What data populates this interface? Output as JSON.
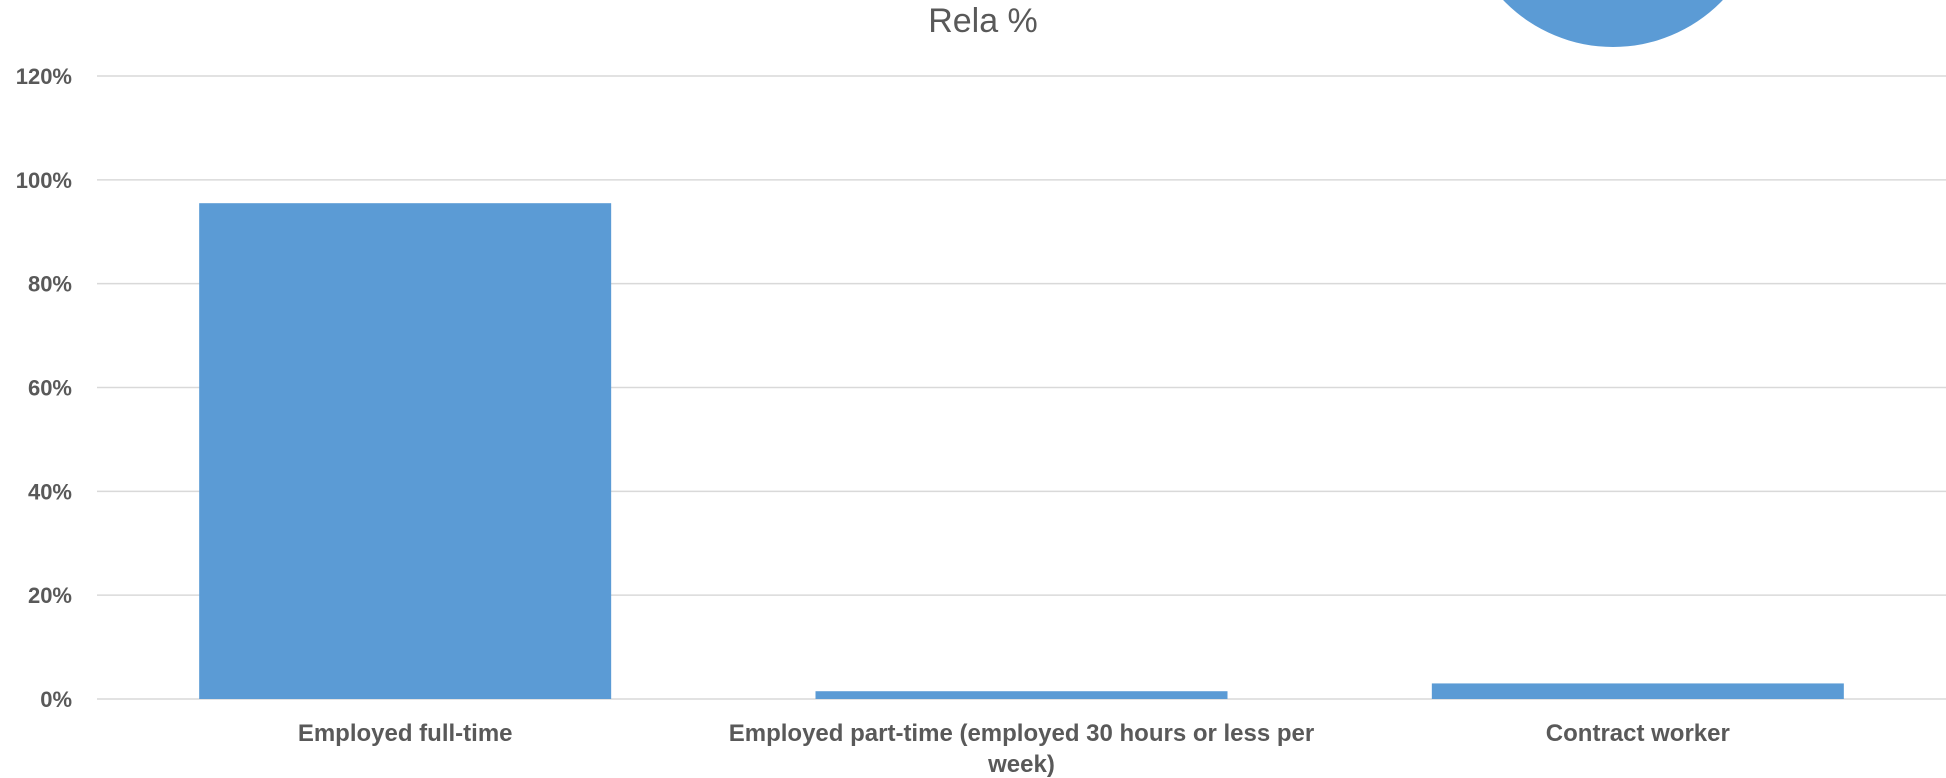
{
  "chart_data": {
    "type": "bar",
    "title": "Rela %",
    "xlabel": "",
    "ylabel": "",
    "categories": [
      [
        "Employed full-time"
      ],
      [
        "Employed part-time (employed 30 hours or less per",
        "week)"
      ],
      [
        "Contract worker"
      ]
    ],
    "values": [
      0.955,
      0.015,
      0.03
    ],
    "ylim": [
      0,
      1.2
    ],
    "yticks": [
      0,
      0.2,
      0.4,
      0.6,
      0.8,
      1.0,
      1.2
    ],
    "ytick_labels": [
      "0%",
      "20%",
      "40%",
      "60%",
      "80%",
      "100%",
      "120%"
    ],
    "grid": true,
    "legend": "none",
    "colors": {
      "bar": "#5b9bd5",
      "grid": "#d9d9d9",
      "text": "#595959",
      "decor": "#5b9bd5"
    }
  }
}
